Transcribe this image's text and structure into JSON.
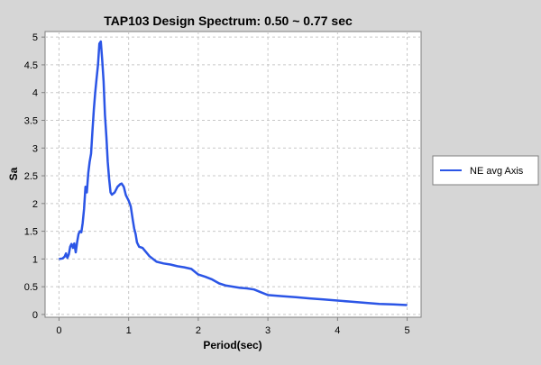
{
  "chart_data": {
    "type": "line",
    "title": "TAP103 Design Spectrum: 0.50 ~ 0.77 sec",
    "xlabel": "Period(sec)",
    "ylabel": "Sa",
    "xlim": [
      -0.2,
      5.2
    ],
    "ylim": [
      -0.05,
      5.1
    ],
    "x_ticks": [
      0,
      1,
      2,
      3,
      4,
      5
    ],
    "x_tick_labels": [
      "0",
      "1",
      "2",
      "3",
      "4",
      "5"
    ],
    "y_ticks": [
      0,
      0.5,
      1,
      1.5,
      2,
      2.5,
      3,
      3.5,
      4,
      4.5,
      5
    ],
    "y_tick_labels": [
      "0",
      "0.5",
      "1",
      "1.5",
      "2",
      "2.5",
      "3",
      "3.5",
      "4",
      "4.5",
      "5"
    ],
    "grid": true,
    "legend_position": "right",
    "series": [
      {
        "name": "NE avg Axis",
        "color": "#2b55e6",
        "x": [
          0.0,
          0.05,
          0.08,
          0.1,
          0.12,
          0.14,
          0.16,
          0.18,
          0.2,
          0.22,
          0.24,
          0.26,
          0.28,
          0.3,
          0.32,
          0.34,
          0.36,
          0.38,
          0.4,
          0.42,
          0.44,
          0.46,
          0.48,
          0.5,
          0.52,
          0.54,
          0.56,
          0.58,
          0.6,
          0.62,
          0.64,
          0.66,
          0.68,
          0.7,
          0.72,
          0.74,
          0.76,
          0.8,
          0.84,
          0.88,
          0.9,
          0.93,
          0.96,
          1.0,
          1.03,
          1.06,
          1.08,
          1.1,
          1.12,
          1.15,
          1.2,
          1.3,
          1.4,
          1.5,
          1.6,
          1.7,
          1.8,
          1.9,
          2.0,
          2.1,
          2.2,
          2.3,
          2.4,
          2.5,
          2.6,
          2.7,
          2.8,
          2.9,
          3.0,
          3.2,
          3.4,
          3.6,
          3.8,
          4.0,
          4.2,
          4.4,
          4.6,
          4.8,
          5.0
        ],
        "y": [
          1.0,
          1.01,
          1.04,
          1.1,
          1.02,
          1.08,
          1.22,
          1.27,
          1.2,
          1.28,
          1.12,
          1.3,
          1.45,
          1.5,
          1.48,
          1.65,
          1.9,
          2.3,
          2.2,
          2.55,
          2.75,
          2.9,
          3.3,
          3.7,
          4.0,
          4.25,
          4.5,
          4.88,
          4.92,
          4.6,
          4.2,
          3.6,
          3.2,
          2.75,
          2.45,
          2.2,
          2.16,
          2.2,
          2.3,
          2.35,
          2.36,
          2.3,
          2.15,
          2.05,
          1.95,
          1.7,
          1.55,
          1.45,
          1.3,
          1.22,
          1.2,
          1.05,
          0.95,
          0.92,
          0.9,
          0.87,
          0.85,
          0.82,
          0.72,
          0.68,
          0.63,
          0.56,
          0.52,
          0.5,
          0.48,
          0.47,
          0.45,
          0.4,
          0.35,
          0.33,
          0.31,
          0.29,
          0.27,
          0.25,
          0.23,
          0.21,
          0.19,
          0.18,
          0.17
        ]
      }
    ]
  }
}
